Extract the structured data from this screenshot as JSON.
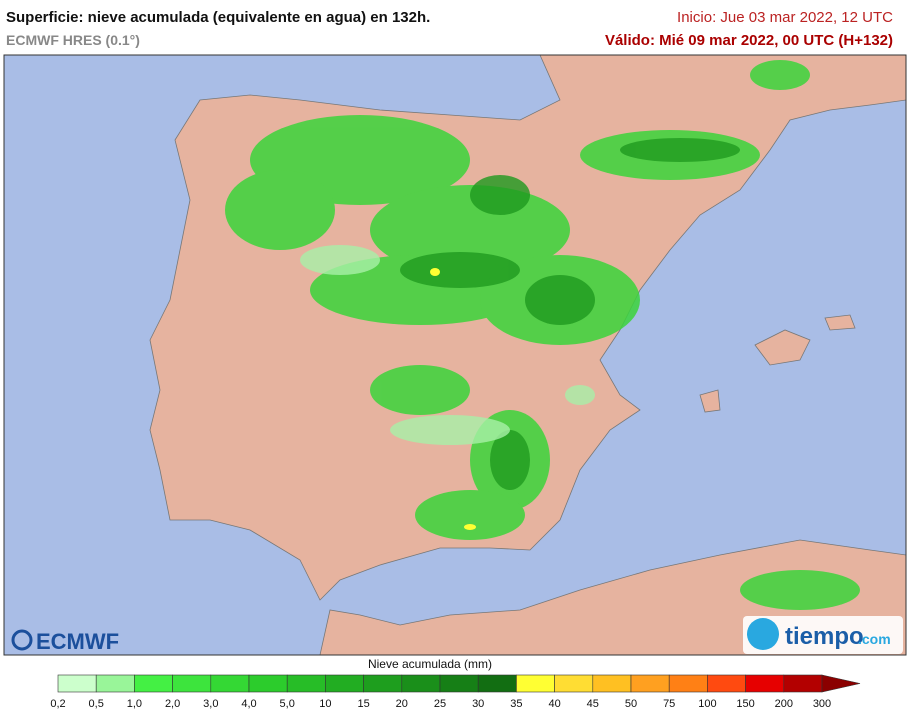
{
  "header": {
    "title": "Superficie: nieve acumulada (equivalente en agua) en 132h.",
    "model": "ECMWF HRES (0.1°)",
    "init": "Inicio: Jue 03 mar 2022, 12 UTC",
    "valid": "Válido: Mié 09 mar 2022, 00 UTC (H+132)"
  },
  "logos": {
    "left": "ECMWF",
    "right_main": "tiempo",
    "right_suffix": ".com"
  },
  "legend": {
    "title": "Nieve acumulada (mm)",
    "ticks": [
      "0,2",
      "0,5",
      "1,0",
      "2,0",
      "3,0",
      "4,0",
      "5,0",
      "10",
      "15",
      "20",
      "25",
      "30",
      "35",
      "40",
      "45",
      "50",
      "75",
      "100",
      "150",
      "200",
      "300"
    ],
    "colors": [
      "#ccffcc",
      "#99f599",
      "#44f044",
      "#3de43d",
      "#34d834",
      "#2ccc2c",
      "#27bd27",
      "#22ad22",
      "#1e9e1e",
      "#1a8f1a",
      "#167f16",
      "#126e12",
      "#ffff33",
      "#ffdd33",
      "#ffc022",
      "#ffa020",
      "#ff8015",
      "#ff4a10",
      "#e60000",
      "#b30000",
      "#8b0000"
    ]
  }
}
